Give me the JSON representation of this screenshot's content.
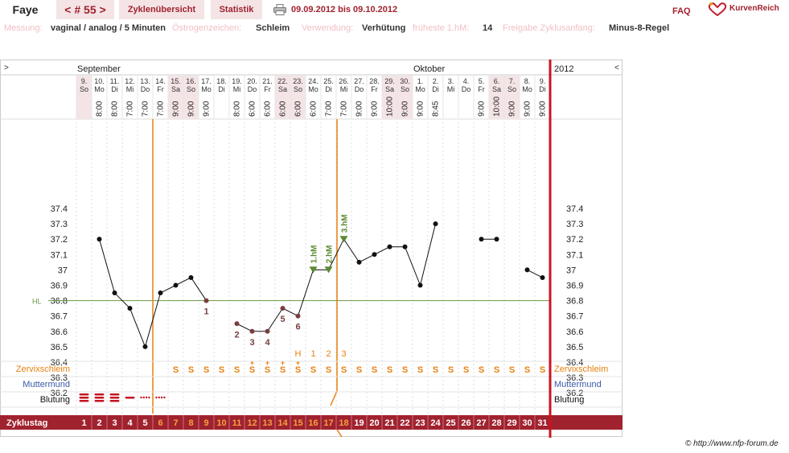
{
  "header": {
    "name": "Faye",
    "cycle": "< # 55 >",
    "tabs": [
      "Zyklenübersicht",
      "Statistik"
    ],
    "date_range": "09.09.2012 bis 09.10.2012",
    "faq": "FAQ",
    "brand": "KurvenReich"
  },
  "info": {
    "messung_label": "Messung:",
    "messung_value": "vaginal / analog / 5 Minuten",
    "oestrogen_label": "Östrogenzeichen:",
    "oestrogen_value": "Schleim",
    "verwendung_label": "Verwendung:",
    "verwendung_value": "Verhütung",
    "fruehe_label": "früheste 1.hM:",
    "fruehe_value": "14",
    "freigabe_label": "Freigabe Zyklusanfang:",
    "freigabe_value": "Minus-8-Regel"
  },
  "chart_data": {
    "type": "line",
    "months": [
      "September",
      "Oktober"
    ],
    "year": "2012",
    "nav_left": ">",
    "nav_right": "<",
    "days": [
      "9.",
      "10.",
      "11.",
      "12.",
      "13.",
      "14.",
      "15.",
      "16.",
      "17.",
      "18.",
      "19.",
      "20.",
      "21.",
      "22.",
      "23.",
      "24.",
      "25.",
      "26.",
      "27.",
      "28.",
      "29.",
      "30.",
      "1.",
      "2.",
      "3.",
      "4.",
      "5.",
      "6.",
      "7.",
      "8.",
      "9."
    ],
    "weekdays": [
      "So",
      "Mo",
      "Di",
      "Mi",
      "Do",
      "Fr",
      "Sa",
      "So",
      "Mo",
      "Di",
      "Mi",
      "Do",
      "Fr",
      "Sa",
      "So",
      "Mo",
      "Di",
      "Mi",
      "Do",
      "Fr",
      "Sa",
      "So",
      "Mo",
      "Di",
      "Mi",
      "Do",
      "Fr",
      "Sa",
      "So",
      "Mo",
      "Di"
    ],
    "times": [
      "",
      "8:00",
      "8:00",
      "7:00",
      "7:00",
      "7:00",
      "9:00",
      "9:00",
      "9:00",
      "",
      "8:00",
      "6:00",
      "6:00",
      "6:00",
      "6:00",
      "6:00",
      "7:00",
      "7:00",
      "9:00",
      "9:00",
      "10:00",
      "9:00",
      "9:00",
      "8:45",
      "",
      "",
      "9:00",
      "10:00",
      "9:00",
      "9:00",
      "9:00"
    ],
    "temperatures": [
      null,
      37.2,
      36.85,
      36.75,
      36.5,
      36.85,
      36.9,
      36.95,
      36.8,
      null,
      36.65,
      36.6,
      36.6,
      36.75,
      36.7,
      37.0,
      37.0,
      37.2,
      37.05,
      37.1,
      37.15,
      37.15,
      36.9,
      37.3,
      null,
      null,
      37.2,
      37.2,
      null,
      37.0,
      36.95
    ],
    "y_ticks": [
      "37.4",
      "37.3",
      "37.2",
      "37.1",
      "37",
      "36.9",
      "36.8",
      "36.7",
      "36.6",
      "36.5",
      "36.4",
      "36.3",
      "36.2"
    ],
    "ylim": [
      36.2,
      37.4
    ],
    "coverline_label": "HL",
    "coverline_value": 36.8,
    "count_labels": [
      {
        "day": 9,
        "text": "1"
      },
      {
        "day": 11,
        "text": "2"
      },
      {
        "day": 12,
        "text": "3"
      },
      {
        "day": 13,
        "text": "4"
      },
      {
        "day": 14,
        "text": "5"
      },
      {
        "day": 15,
        "text": "6"
      }
    ],
    "high_markers": [
      {
        "day": 16,
        "text": "1.hM"
      },
      {
        "day": 17,
        "text": "2.hM"
      },
      {
        "day": 18,
        "text": "3.hM"
      }
    ],
    "mucus_peak_labels": [
      {
        "day": 15,
        "text": "H"
      },
      {
        "day": 16,
        "text": "1"
      },
      {
        "day": 17,
        "text": "2"
      },
      {
        "day": 18,
        "text": "3"
      }
    ],
    "mucus_row_label": "Zervixschleim",
    "cervix_row_label": "Muttermund",
    "bleeding_row_label": "Blutung",
    "mucus": [
      "",
      "",
      "",
      "",
      "",
      "",
      "S",
      "S",
      "S",
      "S",
      "S",
      "S+",
      "S+",
      "S+",
      "S+",
      "S",
      "S",
      "S",
      "S",
      "S",
      "S",
      "S",
      "S",
      "S",
      "S",
      "S",
      "S",
      "S",
      "S",
      "S",
      "S"
    ],
    "bleeding": [
      "heavy",
      "heavy",
      "heavy",
      "medium",
      "light",
      "light",
      "",
      "",
      "",
      "",
      "",
      "",
      "",
      "",
      "",
      "",
      "",
      "",
      "",
      "",
      "",
      "",
      "",
      "",
      "",
      "",
      "",
      "",
      "",
      "",
      ""
    ],
    "cycle_day_label": "Zyklustag",
    "cycle_days": [
      "1",
      "2",
      "3",
      "4",
      "5",
      "6",
      "7",
      "8",
      "9",
      "10",
      "11",
      "12",
      "13",
      "14",
      "15",
      "16",
      "17",
      "18",
      "19",
      "20",
      "21",
      "22",
      "23",
      "24",
      "25",
      "26",
      "27",
      "28",
      "29",
      "30",
      "31"
    ],
    "infertile_before_day": 5,
    "infertile_from_day": 18,
    "colors": {
      "accent": "#a0222e",
      "fertile": "#e6800f",
      "coverline": "#6a9a4a",
      "high": "#5a8a30",
      "count": "#7a3e3e",
      "weekend": "#f4e4e6"
    }
  },
  "footer": "© http://www.nfp-forum.de"
}
